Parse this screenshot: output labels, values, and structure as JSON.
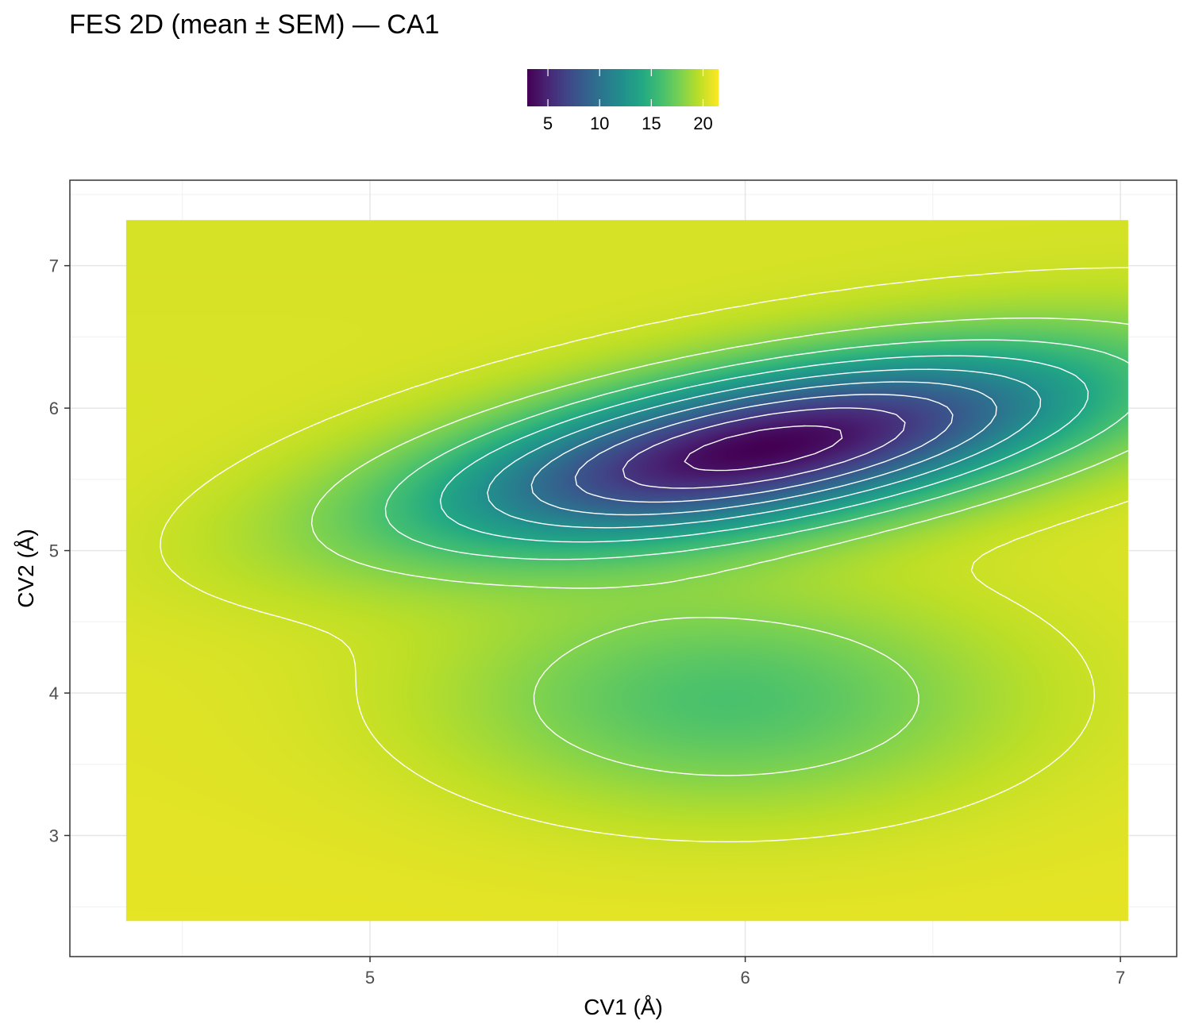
{
  "chart_data": {
    "type": "heatmap",
    "title": "FES 2D (mean ± SEM) — CA1",
    "xlabel": "CV1 (Å)",
    "ylabel": "CV2 (Å)",
    "xlim": [
      4.2,
      7.15
    ],
    "ylim": [
      2.15,
      7.6
    ],
    "data_extent": {
      "x": [
        4.35,
        7.02
      ],
      "y": [
        2.4,
        7.32
      ]
    },
    "x_ticks": [
      "5",
      "6",
      "7"
    ],
    "x_tick_values": [
      5,
      6,
      7
    ],
    "y_ticks": [
      "3",
      "4",
      "5",
      "6",
      "7"
    ],
    "y_tick_values": [
      3,
      4,
      5,
      6,
      7
    ],
    "grid": true,
    "colorbar": {
      "scale": "viridis",
      "range": [
        3,
        21.5
      ],
      "ticks": [
        "5",
        "10",
        "15",
        "20"
      ],
      "tick_values": [
        5,
        10,
        15,
        20
      ],
      "placement": "top"
    },
    "minimum": {
      "x": 6.05,
      "y": 5.72,
      "value": 3
    },
    "contour_levels": [
      4,
      6,
      8,
      10,
      12,
      14,
      16,
      18,
      20
    ],
    "contour_color": "#ffffff"
  }
}
